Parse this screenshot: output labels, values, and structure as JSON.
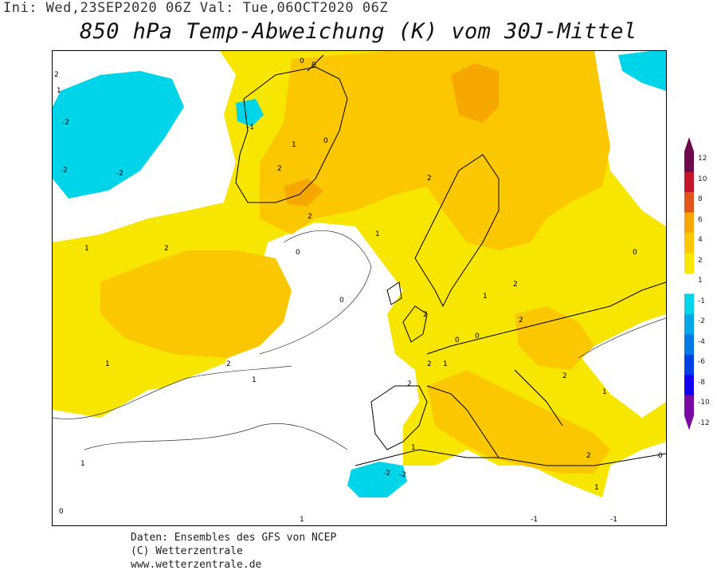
{
  "header": {
    "init_line": "Ini: Wed,23SEP2020 06Z Val: Tue,06OCT2020 06Z",
    "title": "850 hPa Temp-Abweichung (K) vom 30J-Mittel"
  },
  "legend": {
    "colors": [
      "#6b0b4a",
      "#c4162a",
      "#e0561a",
      "#f6a800",
      "#fbc700",
      "#f7e600",
      "#ffffff",
      "#00d4e8",
      "#00a6e6",
      "#0078e6",
      "#0040e8",
      "#1400f0",
      "#7a0aa4"
    ],
    "ticks": [
      "12",
      "10",
      "8",
      "6",
      "4",
      "2",
      "1",
      "-1",
      "-2",
      "-4",
      "-6",
      "-8",
      "-10",
      "-12"
    ]
  },
  "footer": {
    "line1": "Daten: Ensembles des GFS von NCEP",
    "line2": "(C) Wetterzentrale",
    "line3": "www.wetterzentrale.de"
  },
  "map_labels": [
    "2",
    "1",
    "-2",
    "-2",
    "-2",
    "-1",
    "0",
    "0",
    "0",
    "1",
    "2",
    "2",
    "2",
    "1",
    "1",
    "0",
    "0",
    "2",
    "1",
    "2",
    "2",
    "2",
    "1",
    "2",
    "0",
    "0",
    "1",
    "1",
    "2",
    "2",
    "2",
    "2",
    "1",
    "0",
    "-2",
    "-2",
    "1",
    "1",
    "1",
    "0",
    "1",
    "-1",
    "-1",
    "0"
  ]
}
